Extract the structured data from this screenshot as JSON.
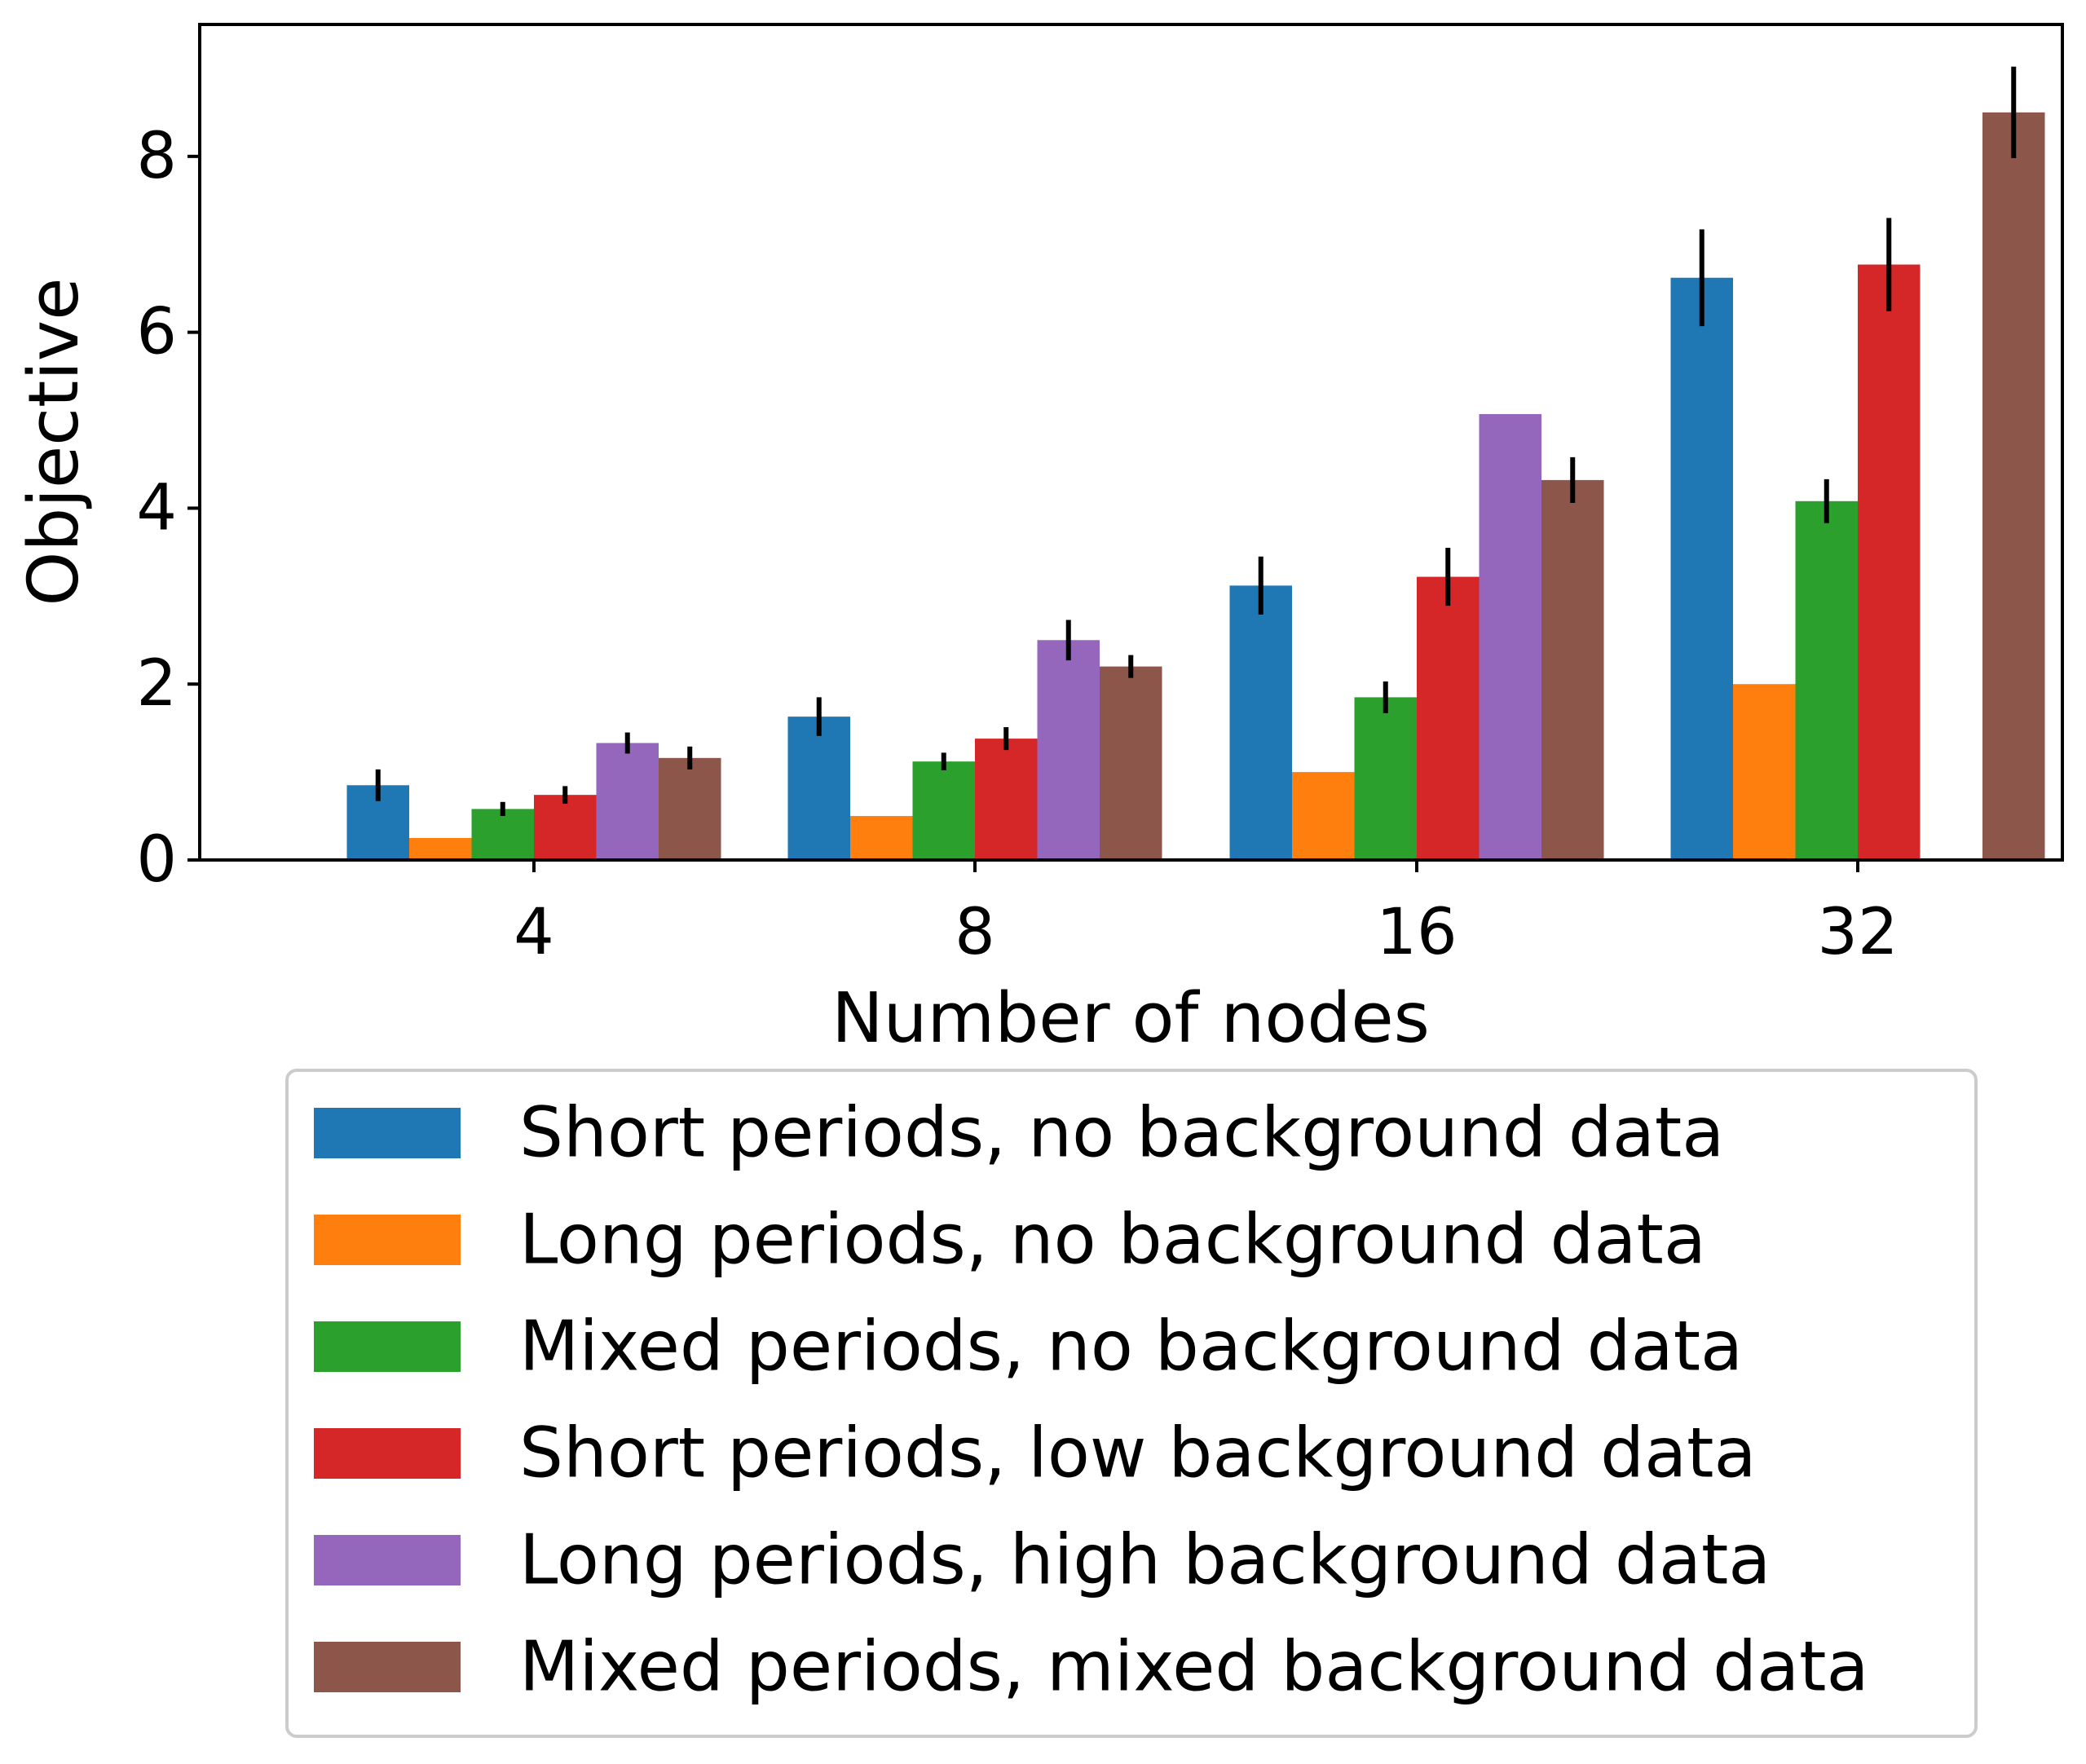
{
  "chart_data": {
    "type": "bar",
    "title": "",
    "xlabel": "Number of nodes",
    "ylabel": "Objective",
    "categories": [
      "4",
      "8",
      "16",
      "32"
    ],
    "ylim": [
      0,
      9.5
    ],
    "yticks": [
      0,
      2,
      4,
      6,
      8
    ],
    "grid": false,
    "legend_position": "bottom",
    "series": [
      {
        "name": "Short periods, no background data",
        "color": "#1f77b4",
        "values": [
          0.85,
          1.63,
          3.12,
          6.62
        ],
        "errors": [
          0.18,
          0.22,
          0.33,
          0.55
        ]
      },
      {
        "name": "Long periods, no background data",
        "color": "#ff7f0e",
        "values": [
          0.25,
          0.5,
          1.0,
          2.0
        ],
        "errors": [
          0,
          0,
          0,
          0
        ]
      },
      {
        "name": "Mixed periods, no background data",
        "color": "#2ca02c",
        "values": [
          0.58,
          1.12,
          1.85,
          4.08
        ],
        "errors": [
          0.08,
          0.1,
          0.18,
          0.25
        ]
      },
      {
        "name": "Short periods, low background data",
        "color": "#d62728",
        "values": [
          0.74,
          1.38,
          3.22,
          6.77
        ],
        "errors": [
          0.1,
          0.13,
          0.33,
          0.53
        ]
      },
      {
        "name": "Long periods, high background data",
        "color": "#9467bd",
        "values": [
          1.33,
          2.5,
          5.07,
          0.0
        ],
        "errors": [
          0.12,
          0.23,
          0,
          0
        ]
      },
      {
        "name": "Mixed periods, mixed background data",
        "color": "#8c564b",
        "values": [
          1.16,
          2.2,
          4.32,
          8.5
        ],
        "errors": [
          0.13,
          0.13,
          0.26,
          0.52
        ]
      }
    ]
  }
}
